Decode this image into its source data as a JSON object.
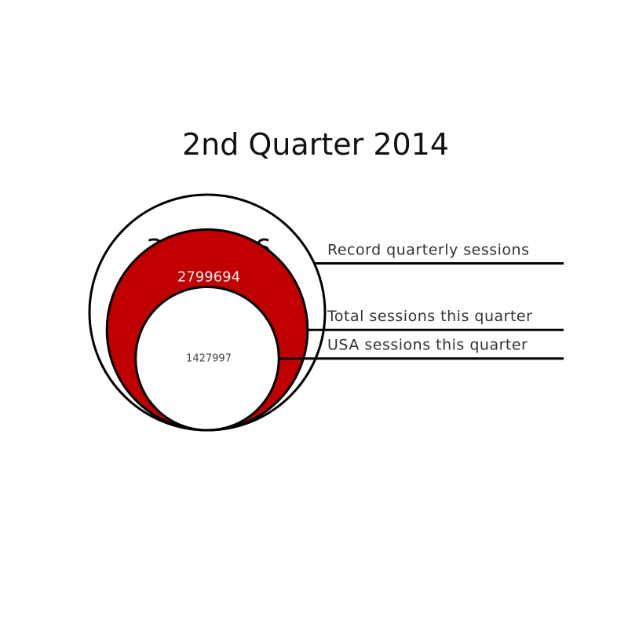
{
  "chart_data": {
    "type": "nested-bubble",
    "title": "2nd Quarter 2014",
    "series": [
      {
        "name": "Record quarterly sessions",
        "value": 3856316,
        "label": "3856316",
        "color": "#ffffff"
      },
      {
        "name": "Total sessions this quarter",
        "value": 2799694,
        "label": "2799694",
        "color": "#c00000"
      },
      {
        "name": "USA sessions this quarter",
        "value": 1427997,
        "label": "1427997",
        "color": "#ffffff"
      }
    ]
  }
}
